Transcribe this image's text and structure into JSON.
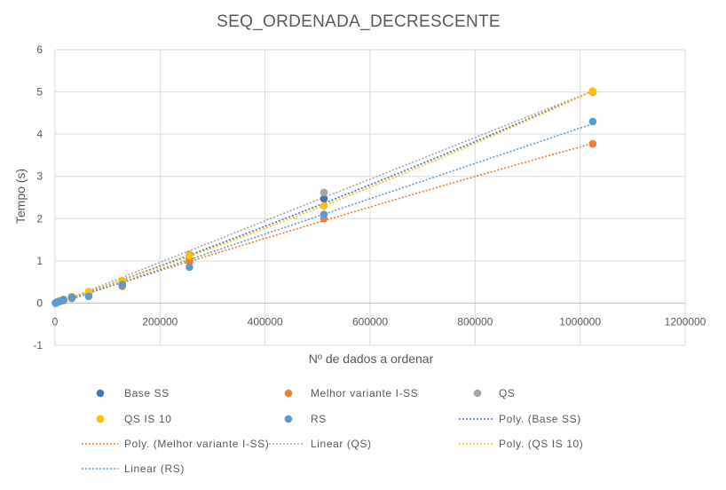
{
  "chart_data": {
    "type": "scatter",
    "title": "SEQ_ORDENADA_DECRESCENTE",
    "xlabel": "Nº de dados a ordenar",
    "ylabel": "Tempo (s)",
    "xlim": [
      0,
      1200000
    ],
    "ylim": [
      -1,
      6
    ],
    "xticks": [
      0,
      200000,
      400000,
      600000,
      800000,
      1000000,
      1200000
    ],
    "yticks": [
      -1,
      0,
      1,
      2,
      3,
      4,
      5,
      6
    ],
    "grid": true,
    "legend_position": "bottom",
    "series": [
      {
        "name": "Base SS",
        "color": "#4472C4",
        "x": [
          1000,
          2000,
          4000,
          8000,
          16000,
          32000,
          64000,
          128000,
          256000,
          512000,
          1024000
        ],
        "y": [
          0.0,
          0.01,
          0.02,
          0.04,
          0.07,
          0.13,
          0.22,
          0.47,
          1.05,
          2.47,
          5.0
        ]
      },
      {
        "name": "Melhor variante I-SS",
        "color": "#ED7D31",
        "x": [
          1000,
          2000,
          4000,
          8000,
          16000,
          32000,
          64000,
          128000,
          256000,
          512000,
          1024000
        ],
        "y": [
          0.0,
          0.01,
          0.02,
          0.03,
          0.06,
          0.11,
          0.18,
          0.4,
          0.98,
          2.0,
          3.77
        ]
      },
      {
        "name": "QS",
        "color": "#A5A5A5",
        "x": [
          1000,
          2000,
          4000,
          8000,
          16000,
          32000,
          64000,
          128000,
          256000,
          512000,
          1024000
        ],
        "y": [
          0.0,
          0.01,
          0.02,
          0.05,
          0.09,
          0.15,
          0.26,
          0.5,
          1.15,
          2.62,
          5.0
        ]
      },
      {
        "name": "QS IS 10",
        "color": "#FFC000",
        "x": [
          1000,
          2000,
          4000,
          8000,
          16000,
          32000,
          64000,
          128000,
          256000,
          512000,
          1024000
        ],
        "y": [
          0.0,
          0.01,
          0.02,
          0.05,
          0.09,
          0.15,
          0.27,
          0.53,
          1.12,
          2.3,
          5.02
        ]
      },
      {
        "name": "RS",
        "color": "#5B9BD5",
        "x": [
          1000,
          2000,
          4000,
          8000,
          16000,
          32000,
          64000,
          128000,
          256000,
          512000,
          1024000
        ],
        "y": [
          0.0,
          0.01,
          0.02,
          0.04,
          0.08,
          0.14,
          0.16,
          0.44,
          0.85,
          2.1,
          4.3
        ]
      }
    ],
    "trendlines": [
      {
        "name": "Poly. (Base SS)",
        "color": "#4472C4",
        "kind": "poly",
        "of": "Base SS"
      },
      {
        "name": "Poly. (Melhor variante I-SS)",
        "color": "#ED7D31",
        "kind": "poly",
        "of": "Melhor variante I-SS"
      },
      {
        "name": "Linear (QS)",
        "color": "#A5A5A5",
        "kind": "linear",
        "of": "QS"
      },
      {
        "name": "Poly. (QS IS 10)",
        "color": "#FFC000",
        "kind": "poly",
        "of": "QS IS 10"
      },
      {
        "name": "Linear (RS)",
        "color": "#5B9BD5",
        "kind": "linear",
        "of": "RS"
      }
    ]
  }
}
